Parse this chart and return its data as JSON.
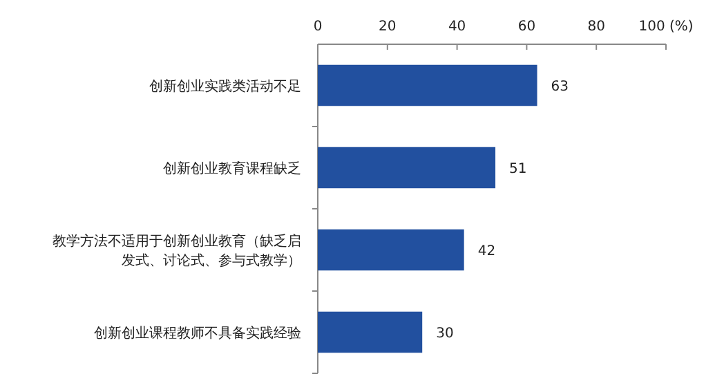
{
  "chart_data": {
    "type": "bar",
    "orientation": "horizontal",
    "categories": [
      "创新创业实践类活动不足",
      "创新创业教育课程缺乏",
      "教学方法不适用于创新创业教育（缺乏启发式、讨论式、参与式教学）",
      "创新创业课程教师不具备实践经验"
    ],
    "values": [
      63,
      51,
      42,
      30
    ],
    "color": "#22509f",
    "data_labels": true,
    "xlim": [
      0,
      100
    ],
    "xticks": [
      0,
      20,
      40,
      60,
      80,
      {
        "value": 100,
        "label": "100 (%)"
      }
    ]
  }
}
